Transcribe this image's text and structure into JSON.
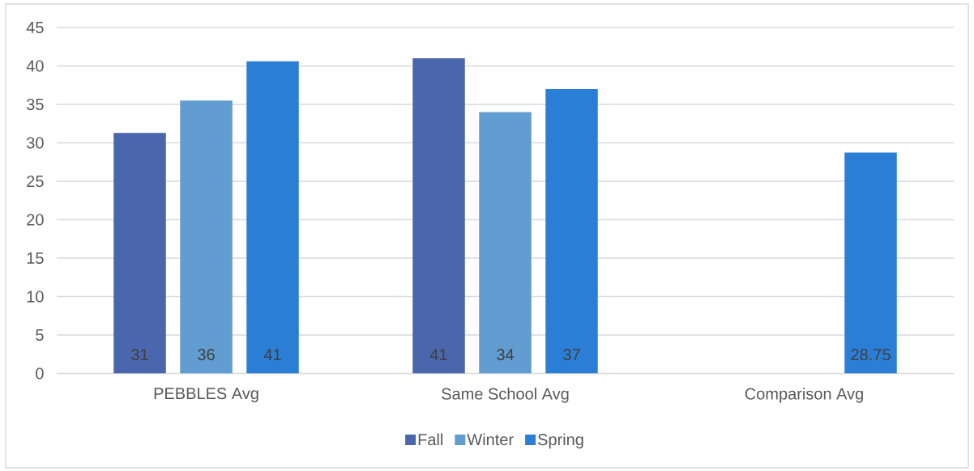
{
  "chart_data": {
    "type": "bar",
    "categories": [
      "PEBBLES Avg",
      "Same School Avg",
      "Comparison Avg"
    ],
    "series": [
      {
        "name": "Fall",
        "color": "#4a66ac",
        "values": [
          31.3,
          41,
          null
        ],
        "value_labels": [
          "31",
          "41",
          null
        ]
      },
      {
        "name": "Winter",
        "color": "#629dd1",
        "values": [
          35.5,
          34,
          null
        ],
        "value_labels": [
          "36",
          "34",
          null
        ]
      },
      {
        "name": "Spring",
        "color": "#2b7ed6",
        "values": [
          40.6,
          37,
          28.75
        ],
        "value_labels": [
          "41",
          "37",
          "28.75"
        ]
      }
    ],
    "ylim": [
      0,
      45
    ],
    "yticks": [
      0,
      5,
      10,
      15,
      20,
      25,
      30,
      35,
      40,
      45
    ],
    "grid": "y",
    "legend": "bottom"
  }
}
